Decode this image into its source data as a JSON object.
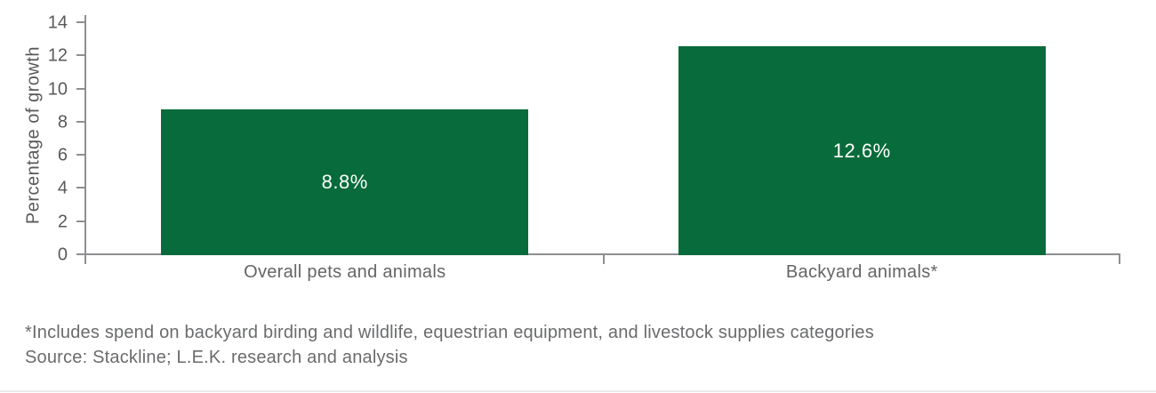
{
  "chart_data": {
    "type": "bar",
    "title": "",
    "xlabel": "",
    "ylabel": "Percentage of growth",
    "categories": [
      "Overall pets and animals",
      "Backyard animals*"
    ],
    "values": [
      8.8,
      12.6
    ],
    "value_labels": [
      "8.8%",
      "12.6%"
    ],
    "ylim": [
      0,
      14
    ],
    "yticks": [
      0,
      2,
      4,
      6,
      8,
      10,
      12,
      14
    ],
    "grid": "off",
    "legend": "none",
    "bar_color": "#086B3B",
    "value_label_color": "#FFFFFF",
    "axis_color": "#8E8F91",
    "tick_label_color": "#58595B",
    "category_label_color": "#646567"
  },
  "footnote": {
    "line1": "*Includes spend on backyard birding and wildlife, equestrian equipment, and livestock supplies categories",
    "line2": "Source: Stackline; L.E.K. research and analysis"
  }
}
